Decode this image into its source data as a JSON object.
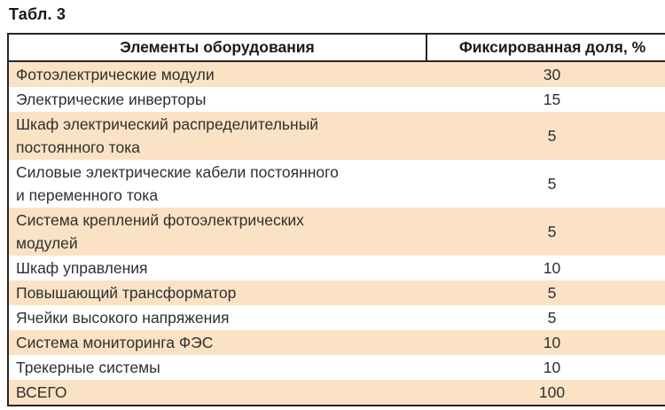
{
  "caption": "Табл. 3",
  "colors": {
    "stripe_peach": "#FBE2C5",
    "table_border": "#262626",
    "text": "#2F2F2F",
    "background": "#FFFFFF"
  },
  "table": {
    "columns": [
      "Элементы оборудования",
      "Фиксированная доля, %"
    ],
    "rows": [
      {
        "name": "Фотоэлектрические модули",
        "share": "30"
      },
      {
        "name": "Электрические инверторы",
        "share": "15"
      },
      {
        "name": "Шкаф электрический распределительный\nпостоянного тока",
        "share": "5"
      },
      {
        "name": "Силовые электрические кабели постоянного\nи переменного тока",
        "share": "5"
      },
      {
        "name": "Система креплений фотоэлектрических\nмодулей",
        "share": "5"
      },
      {
        "name": "Шкаф управления",
        "share": "10"
      },
      {
        "name": "Повышающий трансформатор",
        "share": "5"
      },
      {
        "name": "Ячейки высокого напряжения",
        "share": "5"
      },
      {
        "name": "Система мониторинга ФЭС",
        "share": "10"
      },
      {
        "name": "Трекерные системы",
        "share": "10"
      },
      {
        "name": "ВСЕГО",
        "share": "100"
      }
    ]
  }
}
